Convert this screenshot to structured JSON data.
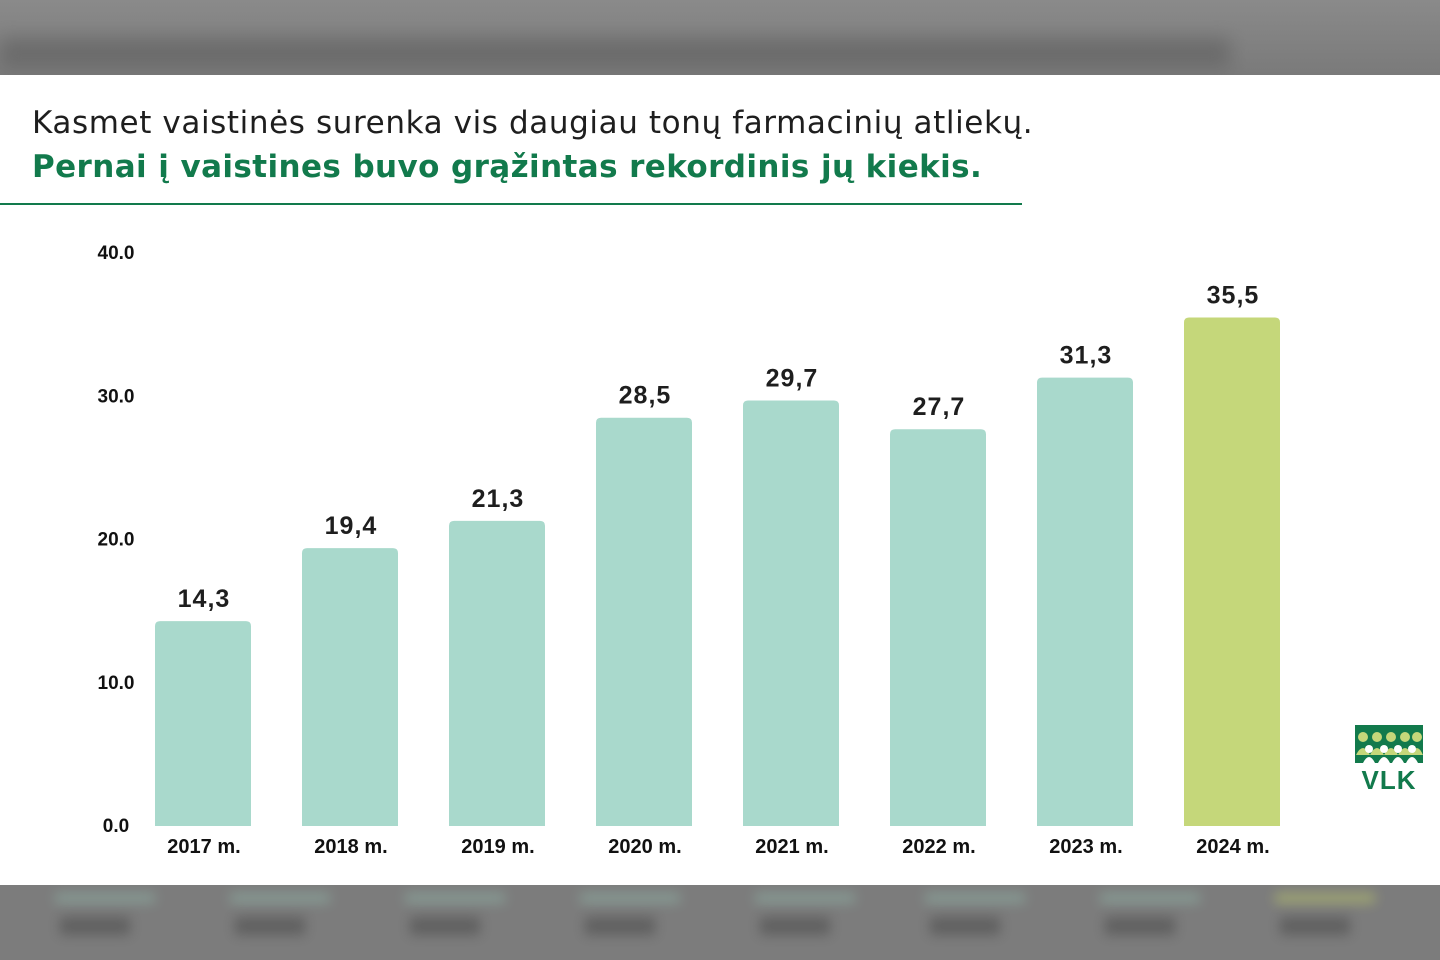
{
  "header": {
    "title": "Kasmet vaistinės surenka vis daugiau tonų farmacinių atliekų.",
    "subtitle": "Pernai į vaistines buvo grąžintas rekordinis jų kiekis."
  },
  "logo": {
    "text": "VLK",
    "icon": "people-group-icon"
  },
  "colors": {
    "bar": "#a9d9cc",
    "bar_highlight": "#c5d77a",
    "accent": "#127a4c"
  },
  "chart_data": {
    "type": "bar",
    "categories": [
      "2017 m.",
      "2018 m.",
      "2019 m.",
      "2020 m.",
      "2021 m.",
      "2022 m.",
      "2023 m.",
      "2024 m."
    ],
    "values": [
      14.3,
      19.4,
      21.3,
      28.5,
      29.7,
      27.7,
      31.3,
      35.5
    ],
    "value_labels": [
      "14,3",
      "19,4",
      "21,3",
      "28,5",
      "29,7",
      "27,7",
      "31,3",
      "35,5"
    ],
    "highlight_index": 7,
    "yticks": [
      "0.0",
      "10.0",
      "20.0",
      "30.0",
      "40.0"
    ],
    "ylim": [
      0,
      40
    ],
    "grid": false,
    "legend": "none"
  }
}
